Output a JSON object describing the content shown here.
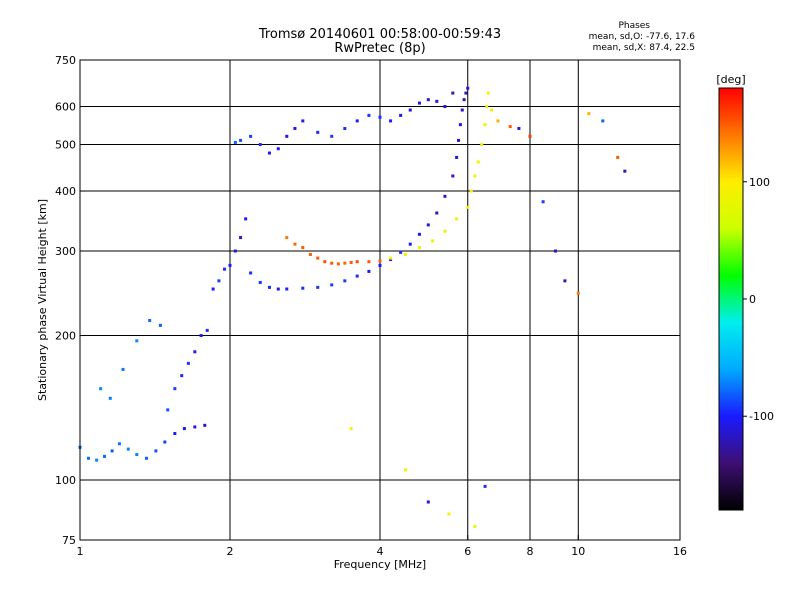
{
  "header": {
    "title": "Tromsø 20140601 00:58:00-00:59:43",
    "subtitle": "RwPretec (8p)",
    "stats_title": "Phases",
    "stats_line1": "mean, sd,O: -77.6, 17.6",
    "stats_line2": "mean, sd,X:  87.4, 22.5"
  },
  "chart_data": {
    "type": "scatter",
    "title": "Tromsø 20140601 00:58:00-00:59:43",
    "subtitle": "RwPretec (8p)",
    "xlabel": "Frequency [MHz]",
    "ylabel": "Stationary phase Virtual Height [km]",
    "x_scale": "log2",
    "y_scale": "log",
    "xlim": [
      1,
      16
    ],
    "ylim": [
      75,
      750
    ],
    "x_ticks": [
      1,
      2,
      4,
      6,
      8,
      10,
      16
    ],
    "x_tick_labels": [
      "1",
      "2",
      "4",
      "6",
      "8",
      "10",
      "16"
    ],
    "y_ticks": [
      75,
      100,
      200,
      300,
      400,
      500,
      600,
      750
    ],
    "y_tick_labels": [
      "75",
      "100",
      "200",
      "300",
      "400",
      "500",
      "600",
      "750"
    ],
    "grid": true,
    "colorbar": {
      "label": "[deg]",
      "range": [
        -180,
        180
      ],
      "ticks": [
        -100,
        0,
        100
      ],
      "tick_labels": [
        "-100",
        "0",
        "100"
      ],
      "colors": [
        "#000000",
        "#3d0f73",
        "#1a1aff",
        "#00aaff",
        "#00eeee",
        "#00ff00",
        "#ccff00",
        "#ffee00",
        "#ff7700",
        "#ff0000"
      ]
    },
    "series": [
      {
        "x": [
          1.0,
          1.04,
          1.08,
          1.12,
          1.16,
          1.2,
          1.25,
          1.3,
          1.36,
          1.42,
          1.48,
          1.55,
          1.62,
          1.7,
          1.78
        ],
        "y": [
          117,
          111,
          110,
          112,
          115,
          119,
          116,
          113,
          111,
          115,
          120,
          125,
          128,
          129,
          130
        ],
        "phase": [
          -80,
          -75,
          -70,
          -78,
          -82,
          -75,
          -70,
          -72,
          -80,
          -85,
          -90,
          -100,
          -105,
          -110,
          -120
        ]
      },
      {
        "x": [
          1.1,
          1.15,
          1.22,
          1.3,
          1.38,
          1.45,
          1.5,
          1.55,
          1.6,
          1.65,
          1.7,
          1.75,
          1.8,
          1.85
        ],
        "y": [
          155,
          148,
          170,
          195,
          215,
          210,
          140,
          155,
          165,
          175,
          185,
          200,
          205,
          250
        ],
        "phase": [
          -70,
          -72,
          -75,
          -70,
          -78,
          -80,
          -85,
          -90,
          -95,
          -92,
          -100,
          -105,
          -95,
          -100
        ]
      },
      {
        "x": [
          1.9,
          1.95,
          2.0,
          2.05,
          2.1,
          2.15,
          2.2,
          2.3,
          2.4,
          2.5,
          2.6,
          2.8,
          3.0,
          3.2,
          3.4,
          3.6,
          3.8,
          4.0,
          4.2,
          4.4,
          4.6,
          4.8,
          5.0,
          5.2,
          5.4,
          5.6,
          5.7,
          5.75,
          5.8,
          5.85,
          5.9,
          5.95,
          6.0
        ],
        "y": [
          260,
          275,
          280,
          300,
          320,
          350,
          270,
          258,
          252,
          250,
          250,
          251,
          252,
          255,
          260,
          266,
          272,
          280,
          288,
          298,
          310,
          325,
          340,
          360,
          390,
          430,
          470,
          510,
          550,
          590,
          620,
          640,
          655
        ],
        "phase": [
          -90,
          -95,
          -100,
          -105,
          -110,
          -100,
          -95,
          -92,
          -95,
          -100,
          -98,
          -95,
          -92,
          -90,
          -90,
          -95,
          -100,
          -100,
          -98,
          -95,
          -100,
          -105,
          -110,
          -115,
          -110,
          -105,
          -108,
          -110,
          -112,
          -115,
          -118,
          -120,
          -118
        ]
      },
      {
        "x": [
          2.05,
          2.1,
          2.2,
          2.3,
          2.4,
          2.5,
          2.6,
          2.7,
          2.8,
          3.0,
          3.2,
          3.4,
          3.6,
          3.8,
          4.0,
          4.2,
          4.4,
          4.6,
          4.8,
          5.0,
          5.2,
          5.4,
          5.6
        ],
        "y": [
          505,
          510,
          520,
          500,
          480,
          490,
          520,
          540,
          560,
          530,
          520,
          540,
          560,
          575,
          570,
          560,
          575,
          590,
          610,
          620,
          615,
          600,
          640
        ],
        "phase": [
          -80,
          -85,
          -90,
          -95,
          -100,
          -105,
          -110,
          -108,
          -100,
          -95,
          -90,
          -95,
          -100,
          -92,
          -95,
          -100,
          -105,
          -110,
          -115,
          -112,
          -108,
          -110,
          -115
        ]
      },
      {
        "x": [
          2.6,
          2.7,
          2.8,
          2.9,
          3.0,
          3.1,
          3.2,
          3.3,
          3.4,
          3.5,
          3.6,
          3.8,
          4.0
        ],
        "y": [
          320,
          310,
          305,
          295,
          290,
          285,
          283,
          282,
          283,
          284,
          285,
          285,
          286
        ],
        "phase": [
          140,
          145,
          150,
          148,
          150,
          155,
          150,
          148,
          145,
          150,
          155,
          150,
          148
        ]
      },
      {
        "x": [
          4.2,
          4.5,
          4.8,
          5.1,
          5.4,
          5.7,
          6.0,
          6.1,
          6.2,
          6.3,
          6.4,
          6.5,
          6.55,
          6.6
        ],
        "y": [
          290,
          295,
          305,
          315,
          330,
          350,
          370,
          400,
          430,
          460,
          500,
          550,
          600,
          640
        ],
        "phase": [
          100,
          95,
          90,
          88,
          90,
          92,
          95,
          98,
          100,
          95,
          90,
          88,
          92,
          95
        ]
      },
      {
        "x": [
          3.5,
          4.5,
          5.0,
          5.5,
          6.2,
          6.5,
          6.7,
          6.9,
          7.3,
          7.6,
          8.0,
          8.5,
          9.0,
          9.4,
          10.0,
          10.5,
          11.2,
          12.0,
          12.4
        ],
        "y": [
          128,
          105,
          90,
          85,
          80,
          97,
          590,
          560,
          545,
          540,
          520,
          380,
          300,
          260,
          245,
          580,
          560,
          470,
          440
        ],
        "phase": [
          95,
          90,
          -110,
          100,
          80,
          -95,
          85,
          120,
          150,
          -100,
          160,
          -90,
          -110,
          -120,
          140,
          120,
          -80,
          150,
          -120
        ]
      }
    ]
  }
}
